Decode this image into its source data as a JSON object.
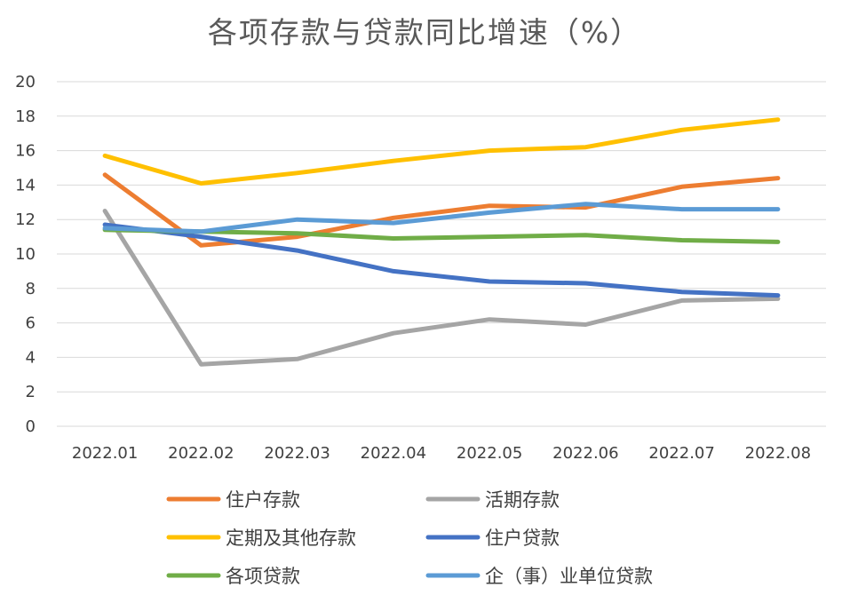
{
  "chart_data": {
    "type": "line",
    "title": "各项存款与贷款同比增速（%）",
    "xlabel": "",
    "ylabel": "",
    "ylim": [
      0,
      20
    ],
    "yticks": [
      0,
      2,
      4,
      6,
      8,
      10,
      12,
      14,
      16,
      18,
      20
    ],
    "grid": true,
    "legend_position": "bottom",
    "categories": [
      "2022.01",
      "2022.02",
      "2022.03",
      "2022.04",
      "2022.05",
      "2022.06",
      "2022.07",
      "2022.08"
    ],
    "series": [
      {
        "name": "住户存款",
        "color": "#ED7D31",
        "values": [
          14.6,
          10.5,
          11.0,
          12.1,
          12.8,
          12.7,
          13.9,
          14.4
        ]
      },
      {
        "name": "活期存款",
        "color": "#A5A5A5",
        "values": [
          12.5,
          3.6,
          3.9,
          5.4,
          6.2,
          5.9,
          7.3,
          7.4
        ]
      },
      {
        "name": "定期及其他存款",
        "color": "#FFC000",
        "values": [
          15.7,
          14.1,
          14.7,
          15.4,
          16.0,
          16.2,
          17.2,
          17.8
        ]
      },
      {
        "name": "住户贷款",
        "color": "#4472C4",
        "values": [
          11.7,
          11.0,
          10.2,
          9.0,
          8.4,
          8.3,
          7.8,
          7.6
        ]
      },
      {
        "name": "各项贷款",
        "color": "#70AD47",
        "values": [
          11.4,
          11.3,
          11.2,
          10.9,
          11.0,
          11.1,
          10.8,
          10.7
        ]
      },
      {
        "name": "企（事）业单位贷款",
        "color": "#5B9BD5",
        "values": [
          11.5,
          11.3,
          12.0,
          11.8,
          12.4,
          12.9,
          12.6,
          12.6
        ]
      }
    ]
  }
}
